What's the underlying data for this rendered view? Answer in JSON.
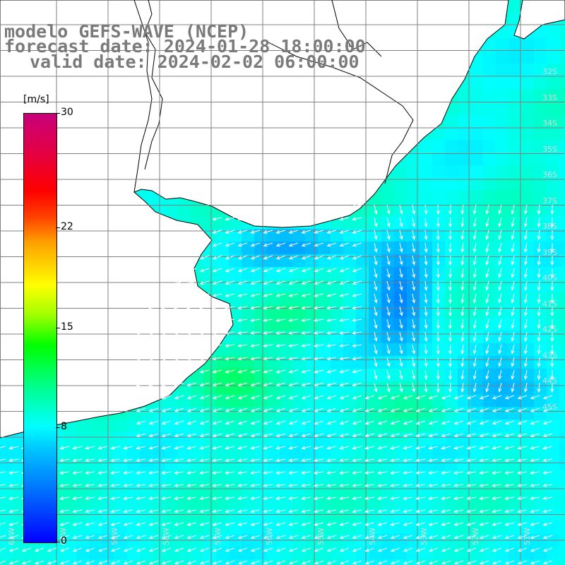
{
  "title": {
    "line1": "modelo GEFS-WAVE (NCEP)",
    "line2": "forecast date: 2024-01-28 18:00:00",
    "line3": "valid date: 2024-02-02 06:00:00"
  },
  "colorbar": {
    "unit": "[m/s]",
    "min": 0,
    "max": 30,
    "ticks": [
      "30",
      "22",
      "15",
      "8",
      "0"
    ],
    "stops": [
      "#0000ff",
      "#0070ff",
      "#00c8ff",
      "#00ffff",
      "#00ff90",
      "#00ff00",
      "#a0ff00",
      "#ffff00",
      "#ffa000",
      "#ff4000",
      "#ff0000",
      "#e0004a",
      "#c8007a"
    ]
  },
  "map": {
    "land_color": "#ffffff",
    "coast_color": "#000000",
    "grid_color": "#808080",
    "arrow_color": "#ffffff",
    "lat_labels": [
      "32S",
      "33S",
      "34S",
      "35S",
      "36S",
      "37S",
      "38S",
      "39S",
      "40S",
      "41S",
      "42S",
      "43S",
      "44S",
      "45S"
    ],
    "lon_labels": [
      "61W",
      "60W",
      "59W",
      "58W",
      "57W",
      "56W",
      "55W",
      "54W",
      "53W",
      "52W",
      "51W"
    ]
  }
}
